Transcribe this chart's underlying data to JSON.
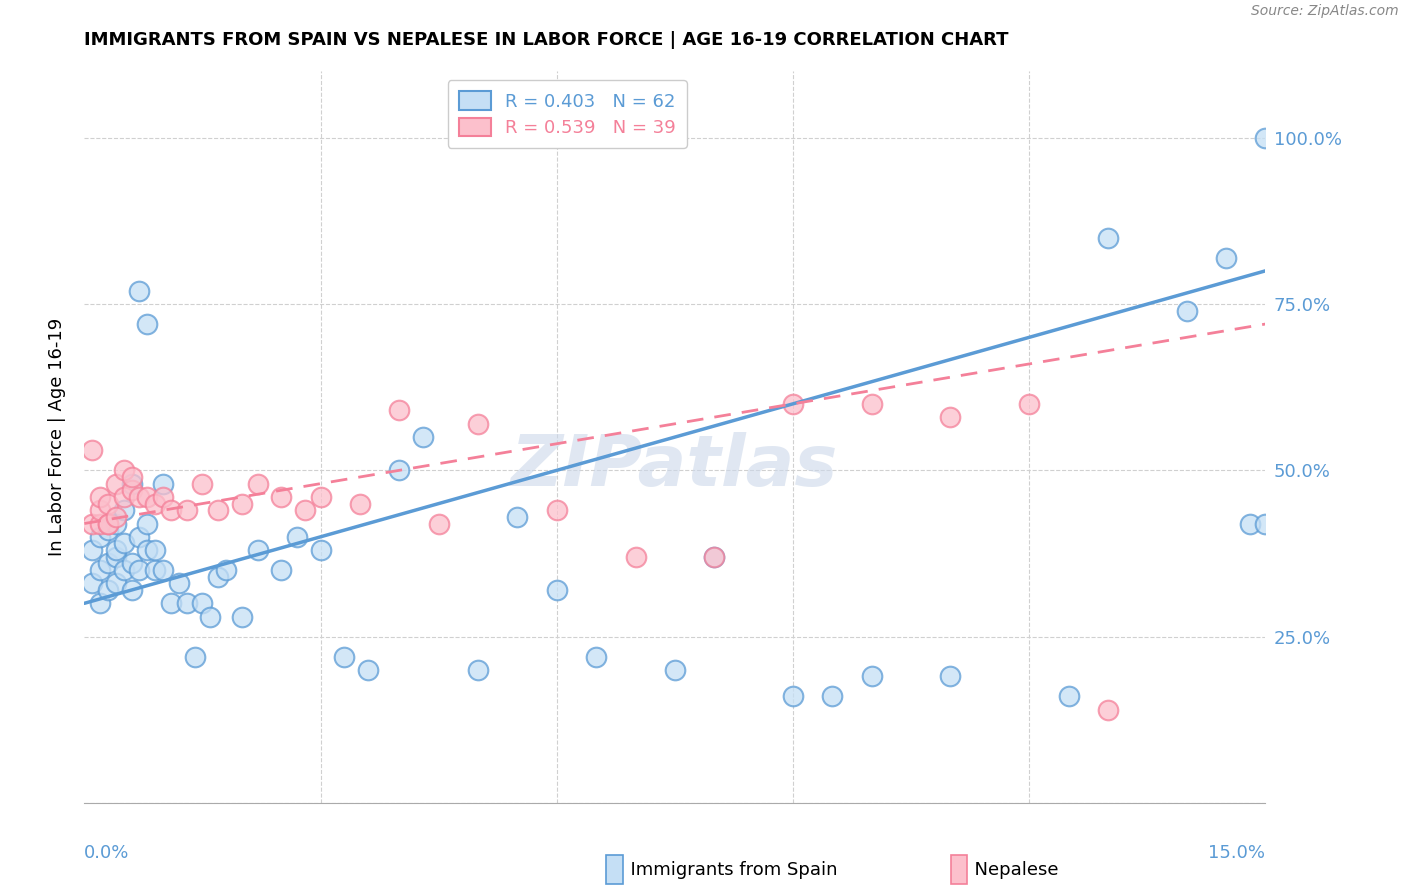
{
  "title": "IMMIGRANTS FROM SPAIN VS NEPALESE IN LABOR FORCE | AGE 16-19 CORRELATION CHART",
  "source": "Source: ZipAtlas.com",
  "ylabel": "In Labor Force | Age 16-19",
  "watermark": "ZIPatlas",
  "blue_color": "#5b9bd5",
  "pink_color": "#f48099",
  "blue_face": "#c5dff5",
  "pink_face": "#fcc0cc",
  "axis_color": "#5b9bd5",
  "grid_color": "#d0d0d0",
  "xlim": [
    0.0,
    0.15
  ],
  "ylim": [
    0.0,
    1.1
  ],
  "yticks": [
    0.25,
    0.5,
    0.75,
    1.0
  ],
  "ytick_labels": [
    "25.0%",
    "50.0%",
    "75.0%",
    "100.0%"
  ],
  "xtick_labels_show": [
    "0.0%",
    "15.0%"
  ],
  "legend_blue": "R = 0.403   N = 62",
  "legend_pink": "R = 0.539   N = 39",
  "bottom_legend_blue": "Immigrants from Spain",
  "bottom_legend_pink": "Nepalese",
  "spain_x": [
    0.001,
    0.001,
    0.002,
    0.002,
    0.002,
    0.003,
    0.003,
    0.003,
    0.004,
    0.004,
    0.004,
    0.004,
    0.005,
    0.005,
    0.005,
    0.006,
    0.006,
    0.006,
    0.007,
    0.007,
    0.007,
    0.008,
    0.008,
    0.008,
    0.009,
    0.009,
    0.01,
    0.01,
    0.011,
    0.012,
    0.013,
    0.014,
    0.015,
    0.016,
    0.017,
    0.018,
    0.02,
    0.022,
    0.025,
    0.027,
    0.03,
    0.033,
    0.036,
    0.04,
    0.043,
    0.05,
    0.055,
    0.06,
    0.065,
    0.075,
    0.08,
    0.09,
    0.095,
    0.1,
    0.11,
    0.125,
    0.13,
    0.14,
    0.145,
    0.148,
    0.15,
    0.15
  ],
  "spain_y": [
    0.33,
    0.38,
    0.3,
    0.35,
    0.4,
    0.32,
    0.36,
    0.41,
    0.33,
    0.37,
    0.42,
    0.38,
    0.35,
    0.39,
    0.44,
    0.32,
    0.36,
    0.48,
    0.35,
    0.4,
    0.77,
    0.38,
    0.42,
    0.72,
    0.35,
    0.38,
    0.48,
    0.35,
    0.3,
    0.33,
    0.3,
    0.22,
    0.3,
    0.28,
    0.34,
    0.35,
    0.28,
    0.38,
    0.35,
    0.4,
    0.38,
    0.22,
    0.2,
    0.5,
    0.55,
    0.2,
    0.43,
    0.32,
    0.22,
    0.2,
    0.37,
    0.16,
    0.16,
    0.19,
    0.19,
    0.16,
    0.85,
    0.74,
    0.82,
    0.42,
    0.42,
    1.0
  ],
  "nepal_x": [
    0.001,
    0.001,
    0.002,
    0.002,
    0.002,
    0.003,
    0.003,
    0.003,
    0.004,
    0.004,
    0.005,
    0.005,
    0.006,
    0.006,
    0.007,
    0.008,
    0.009,
    0.01,
    0.011,
    0.013,
    0.015,
    0.017,
    0.02,
    0.022,
    0.025,
    0.028,
    0.03,
    0.035,
    0.04,
    0.045,
    0.05,
    0.06,
    0.07,
    0.08,
    0.09,
    0.1,
    0.11,
    0.12,
    0.13
  ],
  "nepal_y": [
    0.53,
    0.42,
    0.42,
    0.44,
    0.46,
    0.42,
    0.45,
    0.42,
    0.43,
    0.48,
    0.46,
    0.5,
    0.47,
    0.49,
    0.46,
    0.46,
    0.45,
    0.46,
    0.44,
    0.44,
    0.48,
    0.44,
    0.45,
    0.48,
    0.46,
    0.44,
    0.46,
    0.45,
    0.59,
    0.42,
    0.57,
    0.44,
    0.37,
    0.37,
    0.6,
    0.6,
    0.58,
    0.6,
    0.14
  ],
  "spain_trend_x": [
    0.0,
    0.15
  ],
  "spain_trend_y": [
    0.3,
    0.8
  ],
  "nepal_trend_x": [
    0.0,
    0.15
  ],
  "nepal_trend_y": [
    0.42,
    0.72
  ]
}
